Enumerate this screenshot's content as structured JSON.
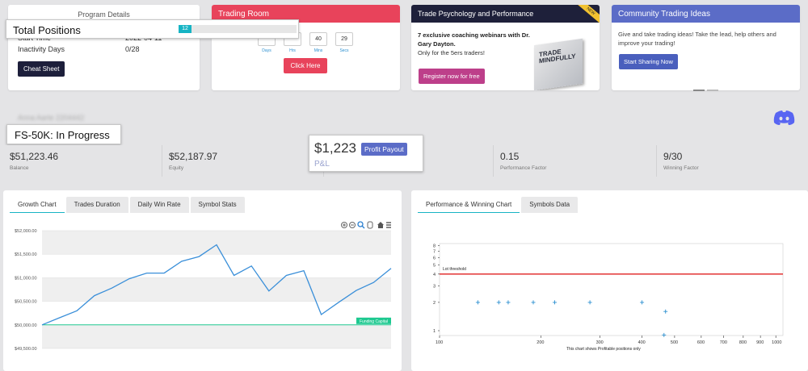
{
  "program": {
    "title": "Program Details",
    "rows": [
      {
        "label": "Start Time",
        "value": "2022-04-11"
      },
      {
        "label": "Inactivity Days",
        "value": "0/28"
      }
    ],
    "cheat_sheet": "Cheat Sheet"
  },
  "total_positions": {
    "label": "Total Positions",
    "count": "12",
    "fill_fraction": 0.11
  },
  "trading_room": {
    "title": "Trading Room",
    "timer": [
      {
        "value": "",
        "unit": "Days"
      },
      {
        "value": "",
        "unit": "Hrs"
      },
      {
        "value": "40",
        "unit": "Mins"
      },
      {
        "value": "29",
        "unit": "Secs"
      }
    ],
    "button": "Click Here"
  },
  "psych": {
    "title": "Trade Psychology and Performance",
    "badge": "NEW",
    "line1": "7 exclusive coaching webinars with Dr. Gary Dayton.",
    "line2": "Only for the 5ers traders!",
    "button": "Register now for free",
    "book_title": "TRADE MINDFULLY"
  },
  "community": {
    "title": "Community Trading Ideas",
    "text": "Give and take trading ideas! Take the lead, help others and improve your trading!",
    "button": "Start Sharing Now"
  },
  "account": {
    "name": "Anna Aarte 2204442",
    "status": "FS-50K: In Progress"
  },
  "pnl": {
    "value": "$1,223",
    "label": "P&L",
    "button": "Profit Payout"
  },
  "stats": [
    {
      "value": "$51,223.46",
      "label": "Balance"
    },
    {
      "value": "$52,187.97",
      "label": "Equity"
    },
    {
      "value": "",
      "label": ""
    },
    {
      "value": "0.15",
      "label": "Performance Factor"
    },
    {
      "value": "9/30",
      "label": "Winning Factor"
    }
  ],
  "growth_tabs": [
    "Growth Chart",
    "Trades Duration",
    "Daily Win Rate",
    "Symbol Stats"
  ],
  "perf_tabs": [
    "Performance & Winning Chart",
    "Symbols Data"
  ],
  "colors": {
    "accent": "#17b4c4",
    "red": "#e8435b",
    "navy": "#1e203a",
    "blue": "#5b6cc7",
    "green": "#1ec990"
  },
  "chart_data": [
    {
      "type": "line",
      "title": "",
      "ylabel": "",
      "ylim": [
        49500,
        52000
      ],
      "yticks": [
        "$52,000.00",
        "$51,500.00",
        "$51,000.00",
        "$50,500.00",
        "$50,000.00",
        "$49,500.00"
      ],
      "baseline": {
        "label": "Funding Capital",
        "value": 50000
      },
      "values": [
        50000,
        50150,
        50300,
        50620,
        50780,
        50980,
        51100,
        51100,
        51350,
        51450,
        51700,
        51050,
        51250,
        50720,
        51050,
        51150,
        50220,
        50480,
        50730,
        50900,
        51200
      ]
    },
    {
      "type": "scatter",
      "xscale": "log",
      "yscale": "log",
      "xticks": [
        100,
        200,
        300,
        400,
        500,
        600,
        700,
        800,
        900,
        1000
      ],
      "yticks": [
        1,
        2,
        3,
        4,
        5,
        6,
        7,
        8
      ],
      "threshold": {
        "label": "Lot threshold",
        "value": 4
      },
      "points": [
        [
          130,
          2
        ],
        [
          150,
          2
        ],
        [
          160,
          2
        ],
        [
          190,
          2
        ],
        [
          220,
          2
        ],
        [
          280,
          2
        ],
        [
          400,
          2
        ],
        [
          470,
          1.6
        ],
        [
          465,
          0.9
        ]
      ],
      "note": "This chart shows Profitable positions only"
    }
  ]
}
